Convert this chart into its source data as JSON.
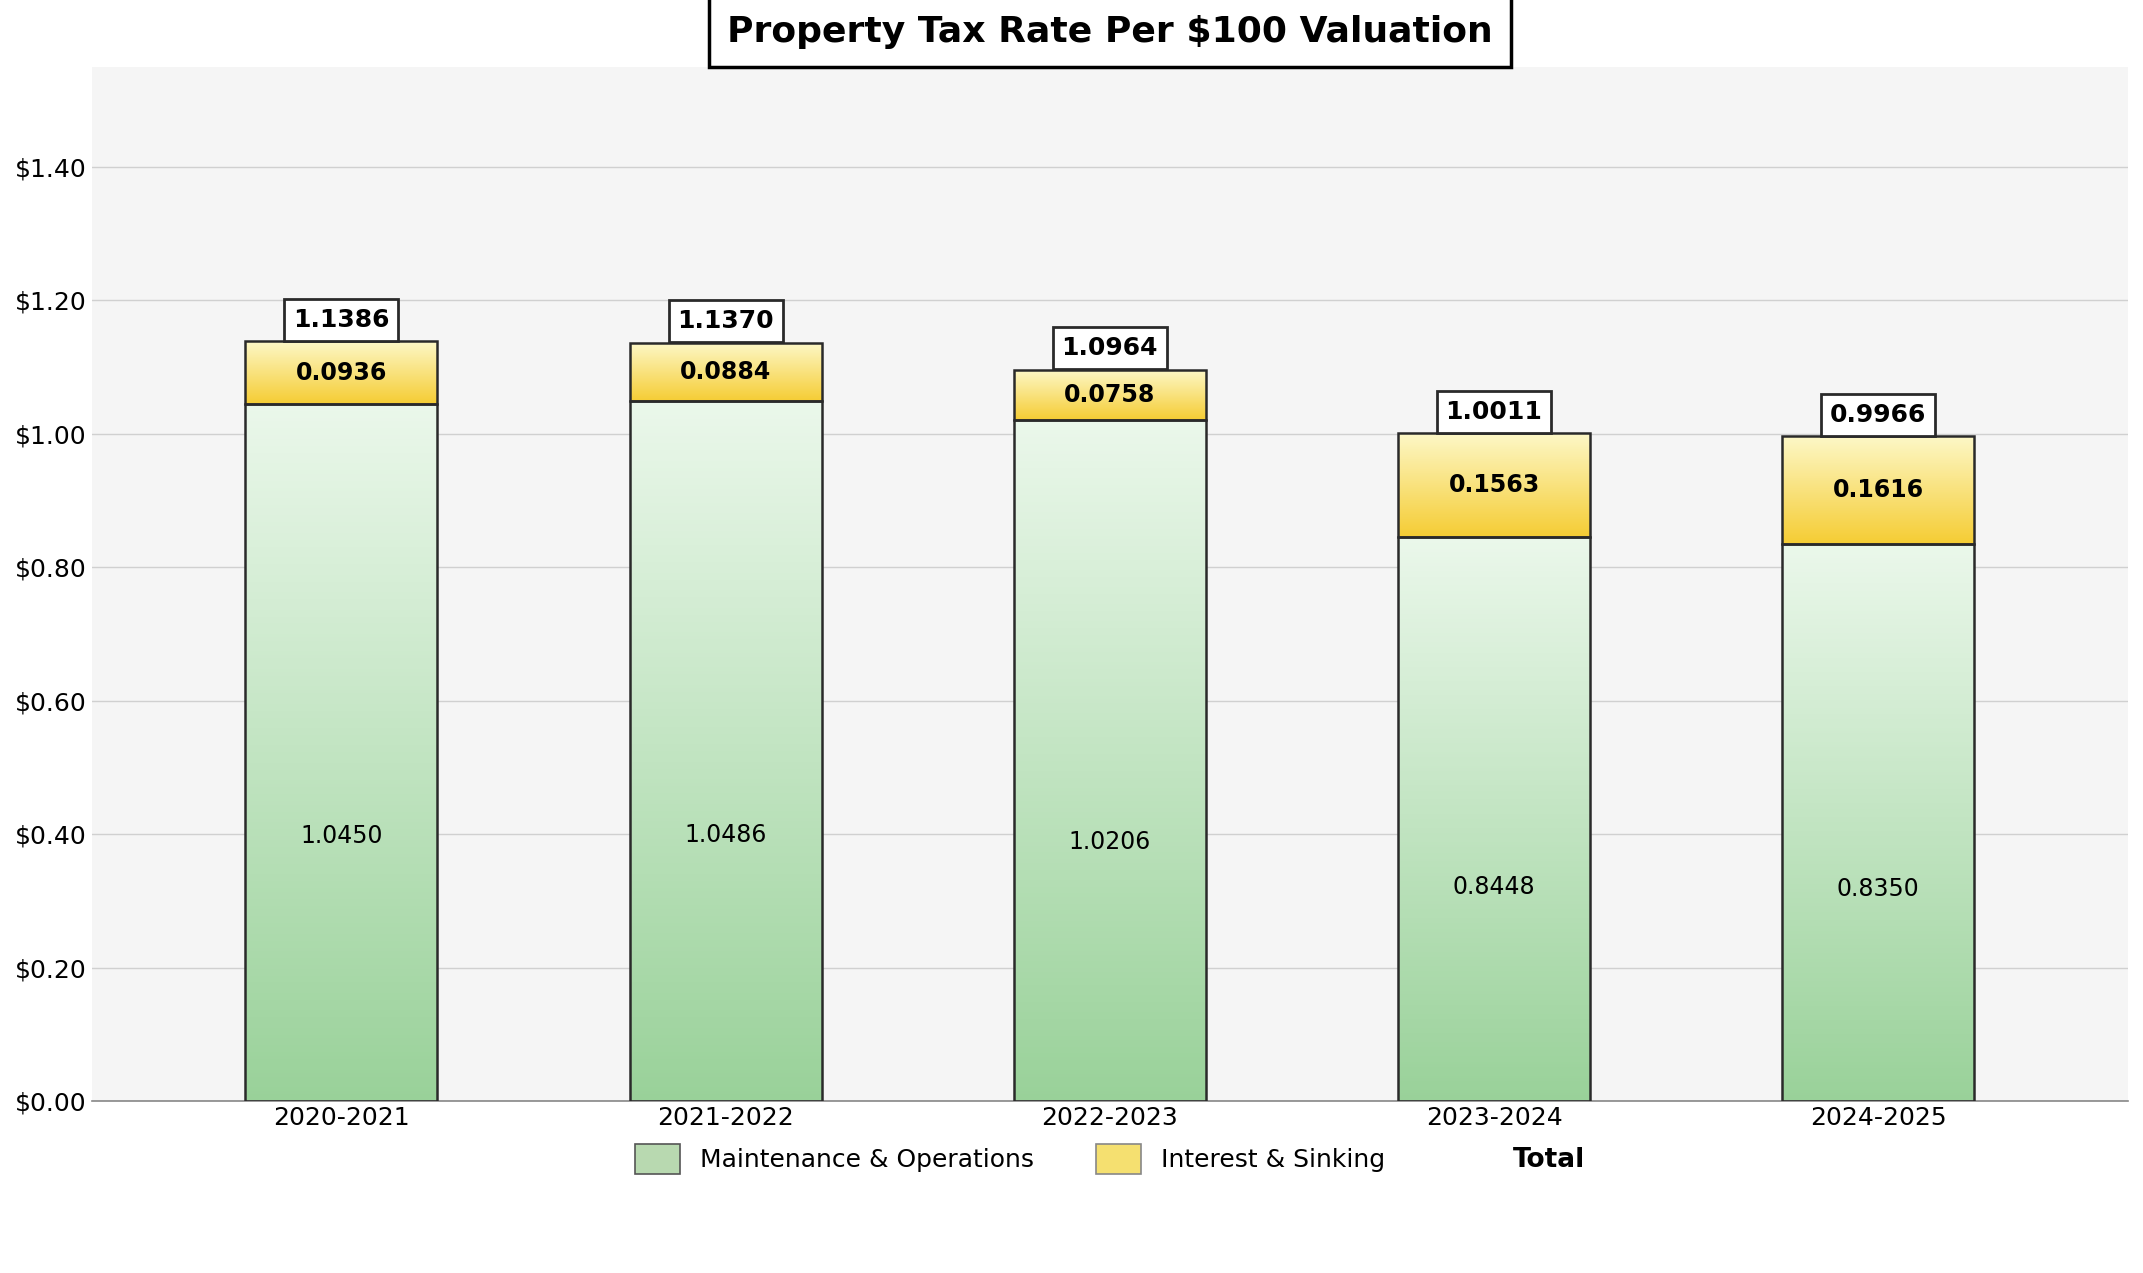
{
  "title": "Property Tax Rate Per $100 Valuation",
  "categories": [
    "2020-2021",
    "2021-2022",
    "2022-2023",
    "2023-2024",
    "2024-2025"
  ],
  "mo_values": [
    1.045,
    1.0486,
    1.0206,
    0.8448,
    0.835
  ],
  "is_values": [
    0.0936,
    0.0884,
    0.0758,
    0.1563,
    0.1616
  ],
  "total_values": [
    1.1386,
    1.137,
    1.0964,
    1.0011,
    0.9966
  ],
  "is_color_bottom": "#f5c842",
  "is_color_top": "#fdf5c0",
  "bar_edge_color": "#2a2a2a",
  "total_box_color": "#ffffff",
  "total_box_edge": "#2a2a2a",
  "background_color": "#ffffff",
  "chart_bg": "#f5f5f5",
  "ylim": [
    0,
    1.55
  ],
  "yticks": [
    0.0,
    0.2,
    0.4,
    0.6,
    0.8,
    1.0,
    1.2,
    1.4
  ],
  "legend_mo": "Maintenance & Operations",
  "legend_is": "Interest & Sinking",
  "legend_total": "Total",
  "title_fontsize": 26,
  "tick_fontsize": 18,
  "label_fontsize": 17,
  "legend_fontsize": 18,
  "bar_width": 0.5,
  "mo_green_dark": [
    0.6,
    0.82,
    0.6
  ],
  "mo_green_light": [
    0.92,
    0.97,
    0.92
  ]
}
